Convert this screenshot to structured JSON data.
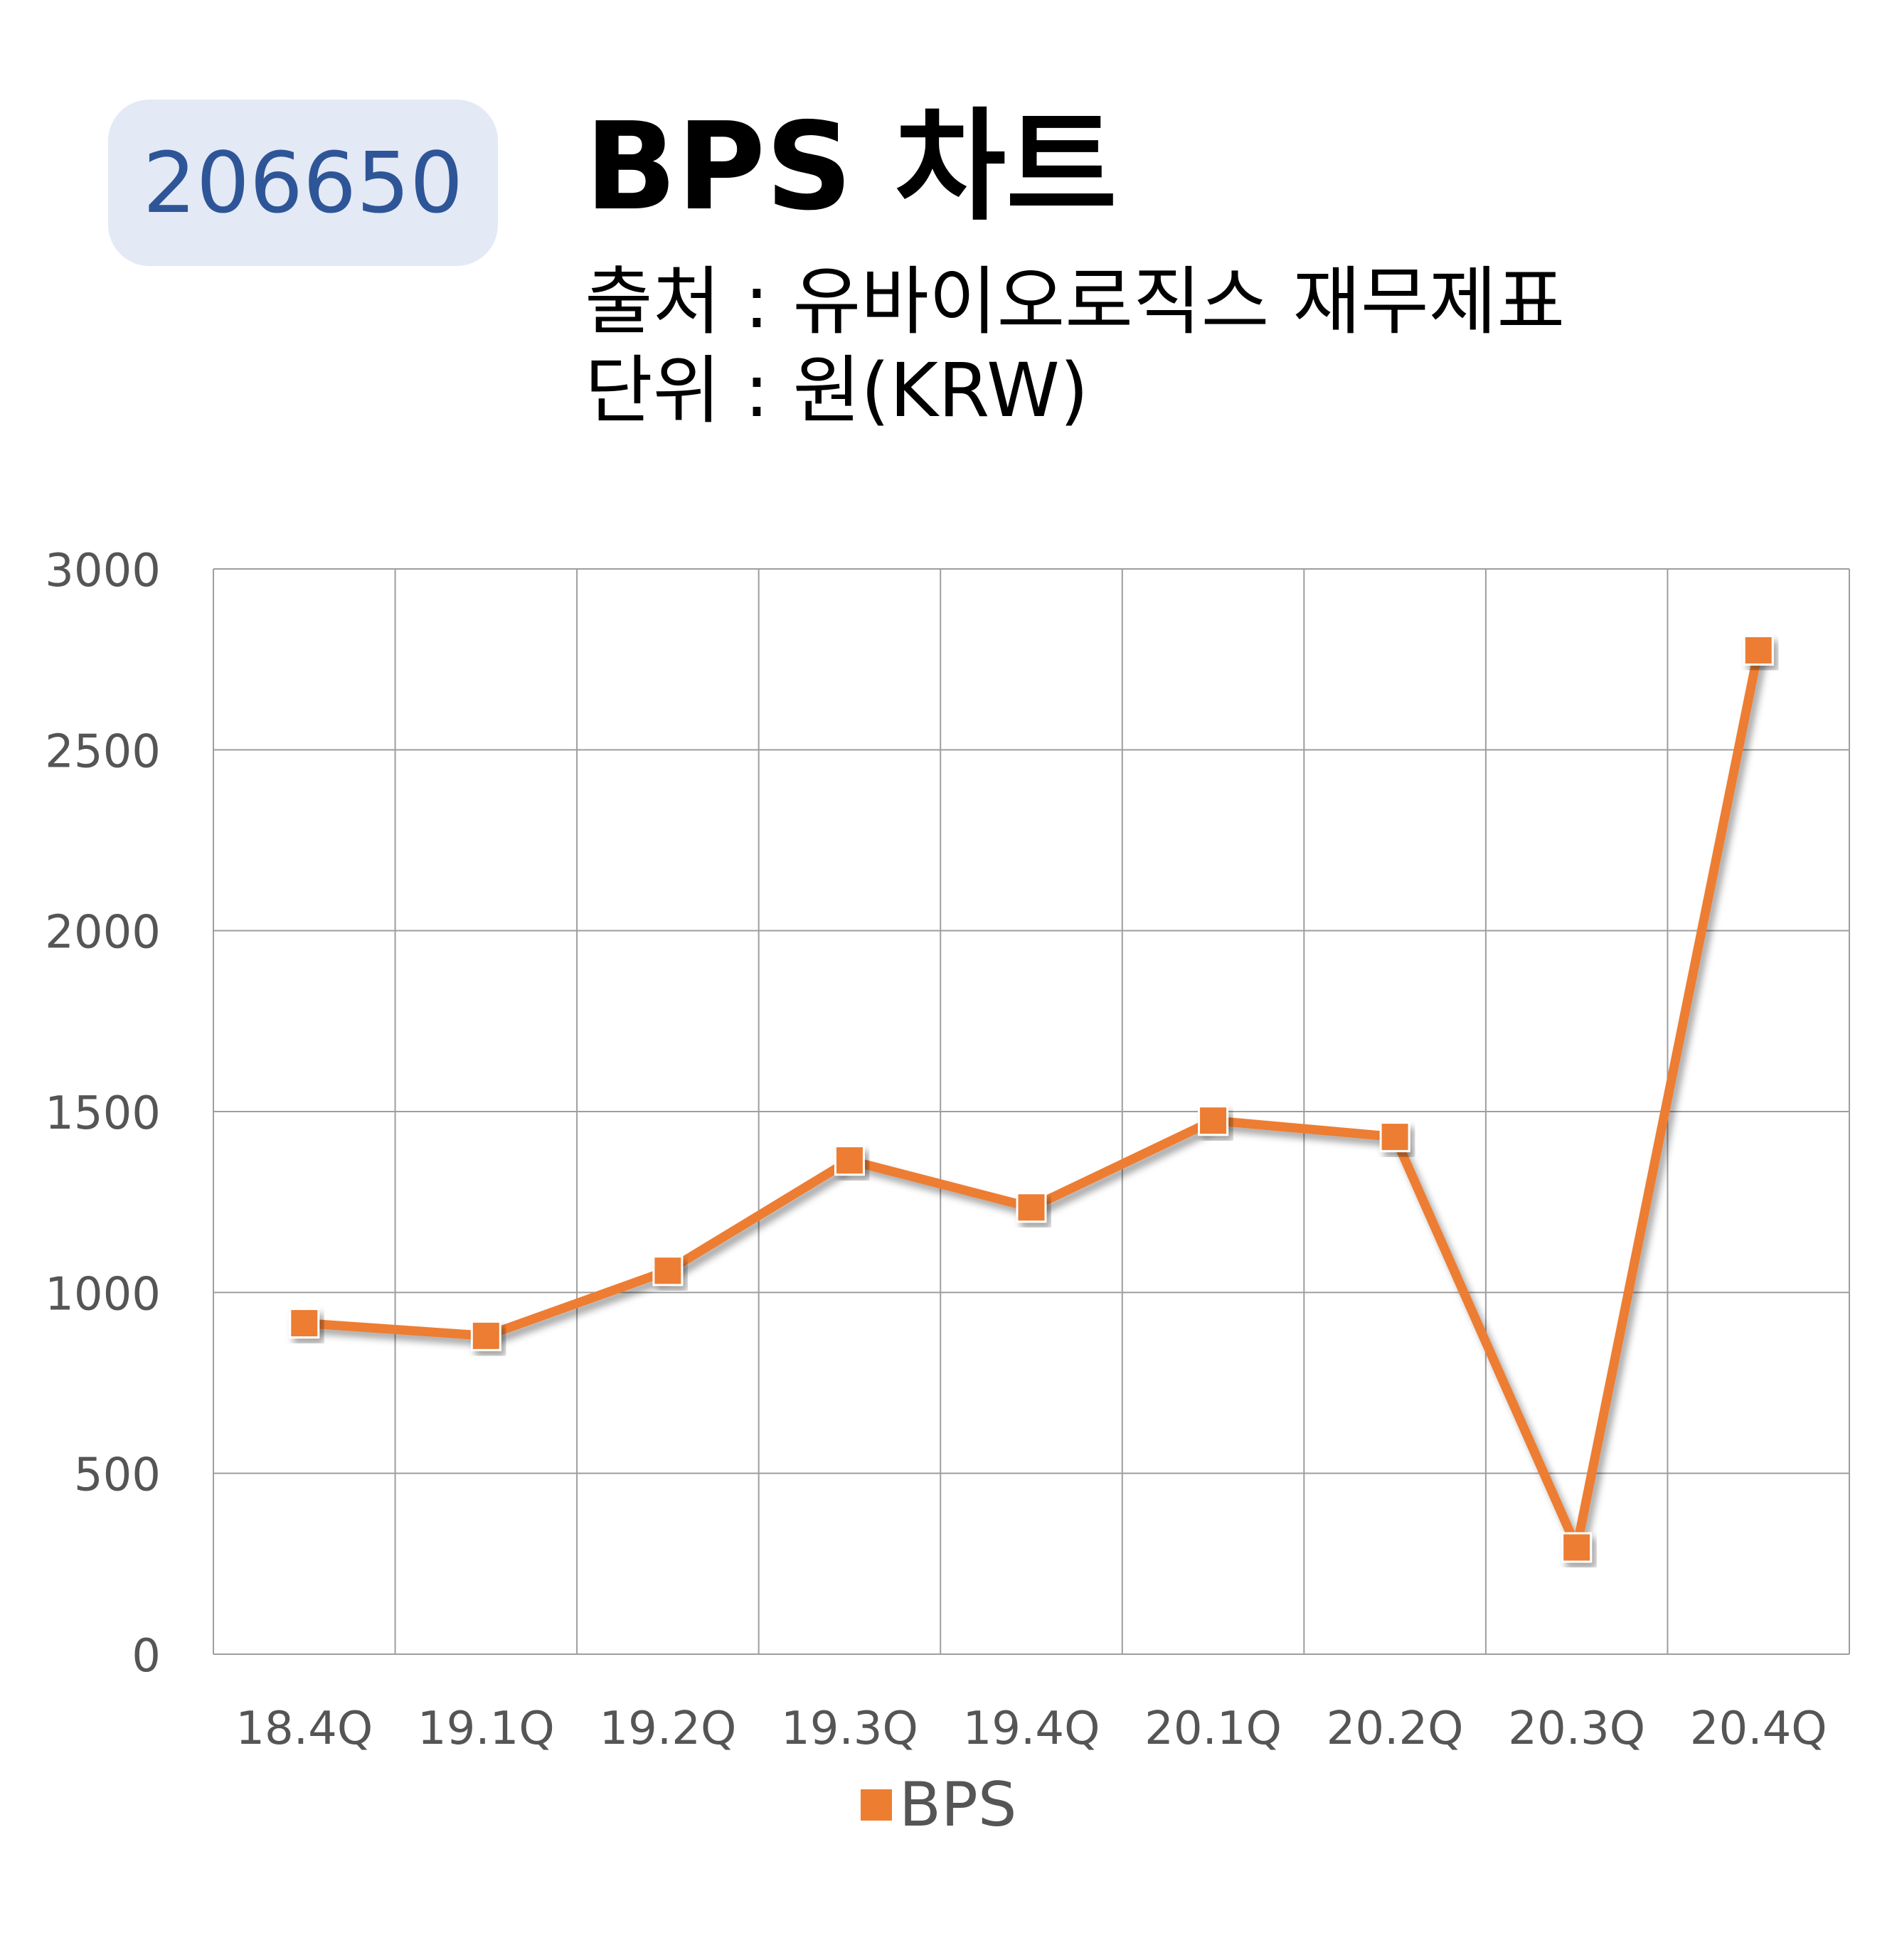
{
  "header": {
    "code": "206650",
    "title": "BPS 차트",
    "source": "출처 : 유바이오로직스 재무제표",
    "unit": "단위 : 원(KRW)"
  },
  "colors": {
    "series": "#ed7d31",
    "badge_bg": "#e3e9f5",
    "badge_text": "#2e5597",
    "grid": "#9e9e9e"
  },
  "chart_data": {
    "type": "line",
    "title": "BPS 차트",
    "categories": [
      "18.4Q",
      "19.1Q",
      "19.2Q",
      "19.3Q",
      "19.4Q",
      "20.1Q",
      "20.2Q",
      "20.3Q",
      "20.4Q"
    ],
    "series": [
      {
        "name": "BPS",
        "values": [
          915,
          880,
          1060,
          1365,
          1235,
          1475,
          1430,
          295,
          2775
        ]
      }
    ],
    "ylim": [
      0,
      3000
    ],
    "yticks": [
      "0",
      "500",
      "1000",
      "1500",
      "2000",
      "2500",
      "3000"
    ],
    "grid": true,
    "marker": "square",
    "legend": {
      "position": "bottom",
      "label": "BPS"
    }
  }
}
